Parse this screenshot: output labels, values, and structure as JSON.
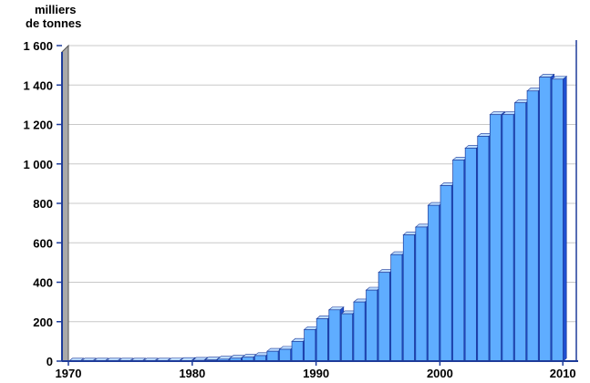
{
  "chart_data": {
    "type": "bar",
    "title": "",
    "xlabel": "",
    "ylabel": "",
    "y_unit_lines": [
      "milliers",
      "de tonnes"
    ],
    "ylim": [
      0,
      1600
    ],
    "xlim": [
      1970,
      2010
    ],
    "y_ticks": [
      0,
      200,
      400,
      600,
      800,
      1000,
      1200,
      1400,
      1600
    ],
    "y_tick_labels": [
      "0",
      "200",
      "400",
      "600",
      "800",
      "1 000",
      "1 200",
      "1 400",
      "1 600"
    ],
    "x_ticks": [
      1970,
      1980,
      1990,
      2000,
      2010
    ],
    "x_tick_labels": [
      "1970",
      "1980",
      "1990",
      "2000",
      "2010"
    ],
    "grid": true,
    "legend": "none",
    "colors": {
      "bar_front": "#5fadff",
      "bar_top": "#bcdcff",
      "bar_side": "#1f4fcf",
      "bar_stroke": "#1e3c9a",
      "left_wall": "#a9a9a9",
      "axis": "#1e3c9a",
      "grid": "#c8c8c8"
    },
    "x": [
      1970,
      1971,
      1972,
      1973,
      1974,
      1975,
      1976,
      1977,
      1978,
      1979,
      1980,
      1981,
      1982,
      1983,
      1984,
      1985,
      1986,
      1987,
      1988,
      1989,
      1990,
      1991,
      1992,
      1993,
      1994,
      1995,
      1996,
      1997,
      1998,
      1999,
      2000,
      2001,
      2002,
      2003,
      2004,
      2005,
      2006,
      2007,
      2008,
      2009
    ],
    "values": [
      0,
      0,
      0,
      0,
      0,
      0,
      0,
      0,
      1,
      3,
      4,
      6,
      10,
      15,
      20,
      28,
      50,
      60,
      100,
      160,
      215,
      260,
      240,
      300,
      360,
      450,
      540,
      640,
      680,
      790,
      890,
      1020,
      1080,
      1140,
      1250,
      1250,
      1310,
      1370,
      1440,
      1430
    ]
  }
}
